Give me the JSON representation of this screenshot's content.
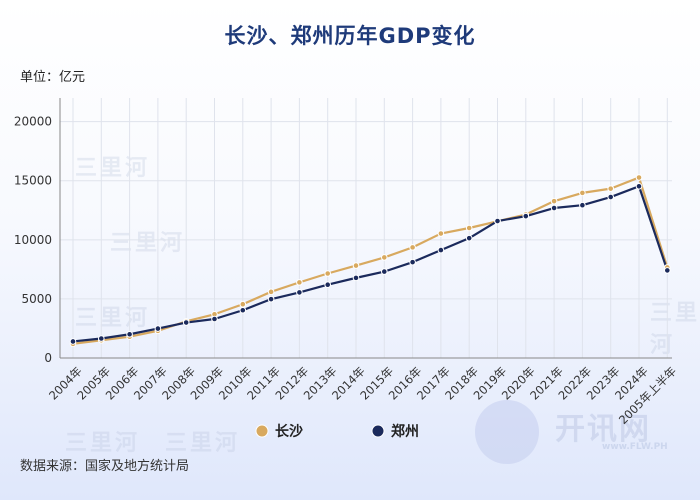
{
  "title": "长沙、郑州历年GDP变化",
  "unit_label": "单位：亿元",
  "source_label": "数据来源：国家及地方统计局",
  "watermark_text": "三里河",
  "logo_text": "开讯网",
  "logo_url": "www.FLW.PH",
  "colors": {
    "changsha": "#d8a95f",
    "zhengzhou": "#1b2a5c",
    "grid": "#dfe3ec",
    "title": "#1e3a7a"
  },
  "chart_data": {
    "type": "line",
    "title": "长沙、郑州历年GDP变化",
    "ylabel": "单位：亿元",
    "xlabel": "",
    "ylim": [
      0,
      22000
    ],
    "yticks": [
      0,
      5000,
      10000,
      15000,
      20000
    ],
    "grid": true,
    "legend_position": "bottom-center",
    "categories": [
      "2004年",
      "2005年",
      "2006年",
      "2007年",
      "2008年",
      "2009年",
      "2010年",
      "2011年",
      "2012年",
      "2013年",
      "2014年",
      "2015年",
      "2016年",
      "2017年",
      "2018年",
      "2019年",
      "2020年",
      "2021年",
      "2022年",
      "2023年",
      "2024年",
      "2005年上半年"
    ],
    "series": [
      {
        "name": "长沙",
        "color": "#d8a95f",
        "values": [
          1200,
          1500,
          1800,
          2300,
          3100,
          3700,
          4550,
          5600,
          6400,
          7150,
          7820,
          8510,
          9360,
          10530,
          11000,
          11570,
          12140,
          13270,
          13970,
          14330,
          15270,
          7660
        ]
      },
      {
        "name": "郑州",
        "color": "#1b2a5c",
        "values": [
          1400,
          1650,
          2010,
          2490,
          3000,
          3300,
          4040,
          4980,
          5550,
          6200,
          6780,
          7310,
          8110,
          9130,
          10140,
          11590,
          12000,
          12690,
          12930,
          13620,
          14530,
          7410
        ]
      }
    ]
  }
}
